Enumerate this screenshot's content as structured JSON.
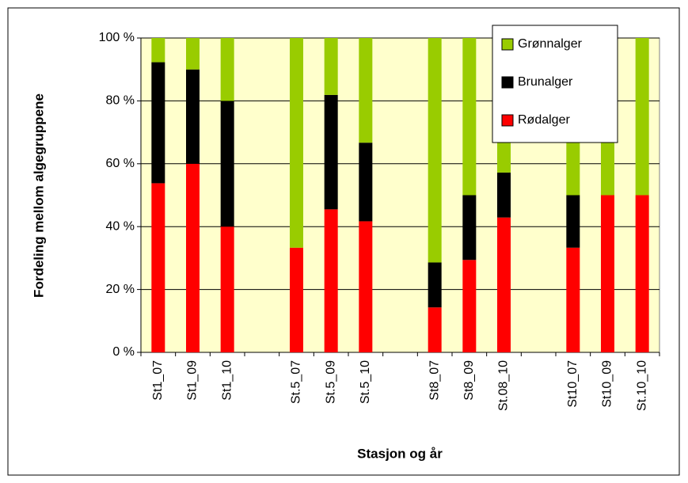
{
  "chart_data": {
    "type": "stacked_bar",
    "x_label": "Stasjon og år",
    "y_label": "Fordeling mellom algegruppene",
    "categories": [
      "St1_07",
      "St1_09",
      "St1_10",
      null,
      "St.5_07",
      "St.5_09",
      "St.5_10",
      null,
      "St8_07",
      "St8_09",
      "St.08_10",
      null,
      "St10_07",
      "St10_09",
      "St.10_10"
    ],
    "series": [
      {
        "name": "Rødalger",
        "color": "#ff0000",
        "values": [
          53.8,
          60,
          40,
          null,
          33.3,
          45.5,
          41.7,
          null,
          14.3,
          29.4,
          42.9,
          null,
          33.3,
          50,
          50
        ]
      },
      {
        "name": "Brunalger",
        "color": "#000000",
        "values": [
          38.5,
          30,
          40,
          null,
          0,
          36.4,
          25,
          null,
          14.3,
          20.6,
          14.3,
          null,
          16.7,
          0,
          0
        ]
      },
      {
        "name": "Grønnalger",
        "color": "#99cc00",
        "values": [
          7.7,
          10,
          20,
          null,
          66.7,
          18.1,
          33.3,
          null,
          71.4,
          50,
          42.8,
          null,
          50,
          50,
          50
        ]
      }
    ],
    "ylim": [
      0,
      100
    ],
    "yticks": [
      {
        "value": 0,
        "label": "0 %"
      },
      {
        "value": 20,
        "label": "20 %"
      },
      {
        "value": 40,
        "label": "40 %"
      },
      {
        "value": 60,
        "label": "60 %"
      },
      {
        "value": 80,
        "label": "80 %"
      },
      {
        "value": 100,
        "label": "100 %"
      }
    ],
    "grid": true,
    "legend": "top-right"
  }
}
